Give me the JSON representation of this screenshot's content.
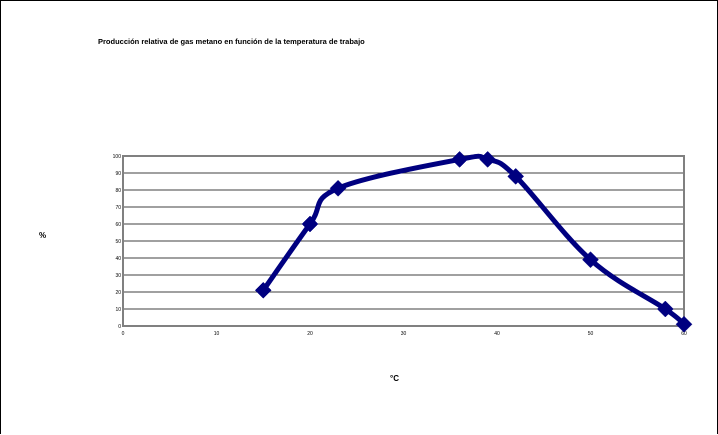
{
  "chart_data": {
    "type": "line",
    "title": "Producción  relativa de gas metano en función de la temperatura de trabajo",
    "xlabel": "°C",
    "ylabel": "%",
    "xlim": [
      0,
      60
    ],
    "ylim": [
      0,
      100
    ],
    "x_ticks": [
      "0",
      "10",
      "20",
      "30",
      "40",
      "50",
      "60"
    ],
    "y_ticks": [
      "0",
      "10",
      "20",
      "30",
      "40",
      "50",
      "60",
      "70",
      "80",
      "90",
      "100"
    ],
    "grid": "horizontal",
    "legend": "none",
    "series": [
      {
        "x": [
          15,
          20,
          23,
          36,
          39,
          42,
          50,
          58,
          60
        ],
        "y": [
          21,
          60,
          81,
          98,
          98,
          88,
          39,
          10,
          1
        ]
      }
    ]
  },
  "colors": {
    "series": "#000080",
    "plot_border": "#808080",
    "grid": "#000000",
    "background": "#ffffff"
  }
}
